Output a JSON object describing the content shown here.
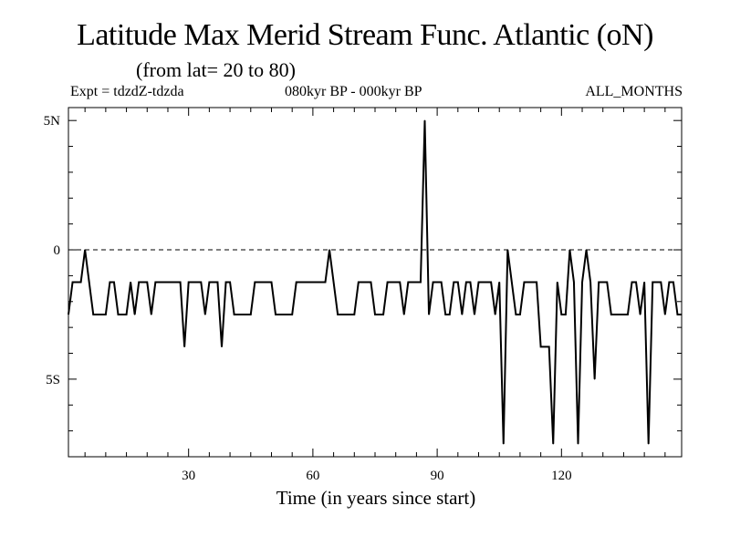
{
  "chart_data": {
    "type": "line",
    "title": "Latitude Max Merid Stream Func. Atlantic (oN)",
    "subtitle": "(from lat= 20 to 80)",
    "experiment": "Expt = tdzdZ-tdzda",
    "period": "080kyr BP - 000kyr BP",
    "season": "ALL_MONTHS",
    "xlabel": "Time (in years since start)",
    "ylabel": "",
    "xlim": [
      1,
      149
    ],
    "ylim": [
      -8,
      5.5
    ],
    "x_ticks": [
      30,
      60,
      90,
      120
    ],
    "x_tick_labels": [
      "30",
      "60",
      "90",
      "120"
    ],
    "y_ticks": [
      5,
      0,
      -5
    ],
    "y_tick_labels": [
      "5N",
      "0",
      "5S"
    ],
    "reference_line": 0,
    "x": [
      1,
      2,
      3,
      4,
      5,
      6,
      7,
      8,
      9,
      10,
      11,
      12,
      13,
      14,
      15,
      16,
      17,
      18,
      19,
      20,
      21,
      22,
      23,
      24,
      25,
      26,
      27,
      28,
      29,
      30,
      31,
      32,
      33,
      34,
      35,
      36,
      37,
      38,
      39,
      40,
      41,
      42,
      43,
      44,
      45,
      46,
      47,
      48,
      49,
      50,
      51,
      52,
      53,
      54,
      55,
      56,
      57,
      58,
      59,
      60,
      61,
      62,
      63,
      64,
      65,
      66,
      67,
      68,
      69,
      70,
      71,
      72,
      73,
      74,
      75,
      76,
      77,
      78,
      79,
      80,
      81,
      82,
      83,
      84,
      85,
      86,
      87,
      88,
      89,
      90,
      91,
      92,
      93,
      94,
      95,
      96,
      97,
      98,
      99,
      100,
      101,
      102,
      103,
      104,
      105,
      106,
      107,
      108,
      109,
      110,
      111,
      112,
      113,
      114,
      115,
      116,
      117,
      118,
      119,
      120,
      121,
      122,
      123,
      124,
      125,
      126,
      127,
      128,
      129,
      130,
      131,
      132,
      133,
      134,
      135,
      136,
      137,
      138,
      139,
      140,
      141,
      142,
      143,
      144,
      145,
      146,
      147,
      148,
      149
    ],
    "series": [
      {
        "values": [
          -2.5,
          -1.25,
          -1.25,
          -1.25,
          0,
          -1.25,
          -2.5,
          -2.5,
          -2.5,
          -2.5,
          -1.25,
          -1.25,
          -2.5,
          -2.5,
          -2.5,
          -1.25,
          -2.5,
          -1.25,
          -1.25,
          -1.25,
          -2.5,
          -1.25,
          -1.25,
          -1.25,
          -1.25,
          -1.25,
          -1.25,
          -1.25,
          -3.75,
          -1.25,
          -1.25,
          -1.25,
          -1.25,
          -2.5,
          -1.25,
          -1.25,
          -1.25,
          -3.75,
          -1.25,
          -1.25,
          -2.5,
          -2.5,
          -2.5,
          -2.5,
          -2.5,
          -1.25,
          -1.25,
          -1.25,
          -1.25,
          -1.25,
          -2.5,
          -2.5,
          -2.5,
          -2.5,
          -2.5,
          -1.25,
          -1.25,
          -1.25,
          -1.25,
          -1.25,
          -1.25,
          -1.25,
          -1.25,
          0,
          -1.25,
          -2.5,
          -2.5,
          -2.5,
          -2.5,
          -2.5,
          -1.25,
          -1.25,
          -1.25,
          -1.25,
          -2.5,
          -2.5,
          -2.5,
          -1.25,
          -1.25,
          -1.25,
          -1.25,
          -2.5,
          -1.25,
          -1.25,
          -1.25,
          -1.25,
          5,
          -2.5,
          -1.25,
          -1.25,
          -1.25,
          -2.5,
          -2.5,
          -1.25,
          -1.25,
          -2.5,
          -1.25,
          -1.25,
          -2.5,
          -1.25,
          -1.25,
          -1.25,
          -1.25,
          -2.5,
          -1.25,
          -7.5,
          0,
          -1.25,
          -2.5,
          -2.5,
          -1.25,
          -1.25,
          -1.25,
          -1.25,
          -3.75,
          -3.75,
          -3.75,
          -7.5,
          -1.25,
          -2.5,
          -2.5,
          0,
          -1.25,
          -7.5,
          -1.25,
          0,
          -1.25,
          -5,
          -1.25,
          -1.25,
          -1.25,
          -2.5,
          -2.5,
          -2.5,
          -2.5,
          -2.5,
          -1.25,
          -1.25,
          -2.5,
          -1.25,
          -7.5,
          -1.25,
          -1.25,
          -1.25,
          -2.5,
          -1.25,
          -1.25,
          -2.5,
          -2.5
        ]
      }
    ]
  }
}
